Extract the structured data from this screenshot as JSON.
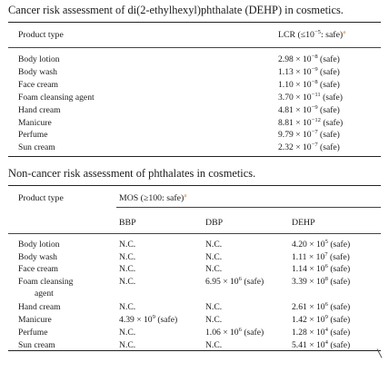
{
  "table1": {
    "title": "Cancer risk assessment of di(2-ethylhexyl)phthalate (DEHP) in cosmetics.",
    "header": {
      "product": "Product type",
      "lcr_prefix": "LCR (≤10",
      "lcr_exp": "−5",
      "lcr_suffix": ": safe)",
      "footnote": "a"
    },
    "rows": [
      {
        "product": "Body lotion",
        "mant": "2.98",
        "exp": "−8",
        "status": "(safe)"
      },
      {
        "product": "Body wash",
        "mant": "1.13",
        "exp": "−9",
        "status": "(safe)"
      },
      {
        "product": "Face cream",
        "mant": "1.10",
        "exp": "−8",
        "status": "(safe)"
      },
      {
        "product": "Foam cleansing agent",
        "mant": "3.70",
        "exp": "−11",
        "status": "(safe)"
      },
      {
        "product": "Hand cream",
        "mant": "4.81",
        "exp": "−9",
        "status": "(safe)"
      },
      {
        "product": "Manicure",
        "mant": "8.81",
        "exp": "−12",
        "status": "(safe)"
      },
      {
        "product": "Perfume",
        "mant": "9.79",
        "exp": "−7",
        "status": "(safe)"
      },
      {
        "product": "Sun cream",
        "mant": "2.32",
        "exp": "−7",
        "status": "(safe)"
      }
    ]
  },
  "table2": {
    "title": "Non-cancer risk assessment of phthalates in cosmetics.",
    "header": {
      "product": "Product type",
      "mos_label": "MOS (≥100: safe)",
      "footnote": "a",
      "bbp": "BBP",
      "dbp": "DBP",
      "dehp": "DEHP"
    },
    "rows": [
      {
        "product": "Body lotion",
        "bbp": {
          "text": "N.C."
        },
        "dbp": {
          "text": "N.C."
        },
        "dehp": {
          "mant": "4.20",
          "exp": "5",
          "status": "(safe)"
        }
      },
      {
        "product": "Body wash",
        "bbp": {
          "text": "N.C."
        },
        "dbp": {
          "text": "N.C."
        },
        "dehp": {
          "mant": "1.11",
          "exp": "7",
          "status": "(safe)"
        }
      },
      {
        "product": "Face cream",
        "bbp": {
          "text": "N.C."
        },
        "dbp": {
          "text": "N.C."
        },
        "dehp": {
          "mant": "1.14",
          "exp": "6",
          "status": "(safe)"
        }
      },
      {
        "product": "Foam cleansing",
        "product_line2": "agent",
        "bbp": {
          "text": "N.C."
        },
        "dbp": {
          "mant": "6.95",
          "exp": "6",
          "status": "(safe)"
        },
        "dehp": {
          "mant": "3.39",
          "exp": "8",
          "status": "(safe)"
        }
      },
      {
        "product": "Hand cream",
        "bbp": {
          "text": "N.C."
        },
        "dbp": {
          "text": "N.C."
        },
        "dehp": {
          "mant": "2.61",
          "exp": "6",
          "status": "(safe)"
        }
      },
      {
        "product": "Manicure",
        "bbp": {
          "mant": "4.39",
          "exp": "9",
          "status": "(safe)"
        },
        "dbp": {
          "text": "N.C."
        },
        "dehp": {
          "mant": "1.42",
          "exp": "9",
          "status": "(safe)"
        }
      },
      {
        "product": "Perfume",
        "bbp": {
          "text": "N.C."
        },
        "dbp": {
          "mant": "1.06",
          "exp": "6",
          "status": "(safe)"
        },
        "dehp": {
          "mant": "1.28",
          "exp": "4",
          "status": "(safe)"
        }
      },
      {
        "product": "Sun cream",
        "bbp": {
          "text": "N.C."
        },
        "dbp": {
          "text": "N.C."
        },
        "dehp": {
          "mant": "5.41",
          "exp": "4",
          "status": "(safe)"
        }
      }
    ]
  }
}
